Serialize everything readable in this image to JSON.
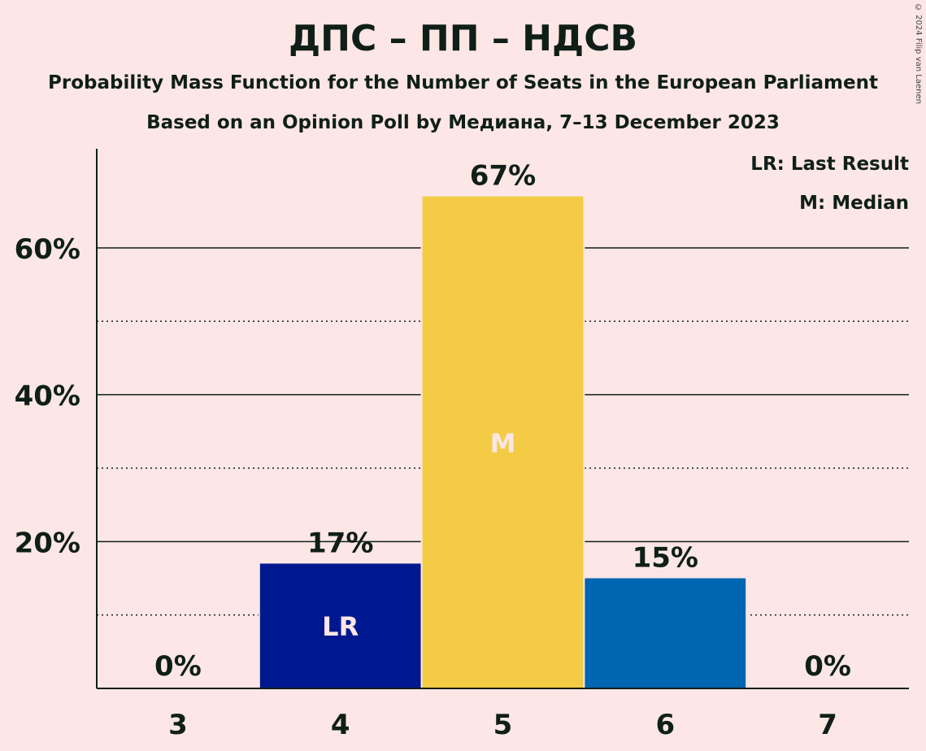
{
  "header": {
    "title": "ДПС – ПП – НДСВ",
    "subtitle": "Probability Mass Function for the Number of Seats in the European Parliament",
    "subtitle2": "Based on an Opinion Poll by Медиана, 7–13 December 2023",
    "copyright": "© 2024 Filip van Laenen"
  },
  "legend": {
    "lr": "LR: Last Result",
    "median": "M: Median"
  },
  "chart_data": {
    "type": "bar",
    "categories": [
      "3",
      "4",
      "5",
      "6",
      "7"
    ],
    "values": [
      0,
      17,
      67,
      15,
      0
    ],
    "data_labels": [
      "0%",
      "17%",
      "67%",
      "15%",
      "0%"
    ],
    "bar_markers": [
      "",
      "LR",
      "M",
      "",
      ""
    ],
    "colors": [
      "#0f1f17",
      "#00188f",
      "#f4cb45",
      "#0066b2",
      "#0f1f17"
    ],
    "marker_colors": [
      "",
      "#fde6e6",
      "",
      "",
      "#fde6e6"
    ],
    "yticks": [
      20,
      40,
      60
    ],
    "ytick_labels": [
      "20%",
      "40%",
      "60%"
    ],
    "minor_gridlines": [
      10,
      30,
      50
    ],
    "ylim": [
      0,
      73.5
    ],
    "grid": true,
    "legend_position": "top-right"
  }
}
